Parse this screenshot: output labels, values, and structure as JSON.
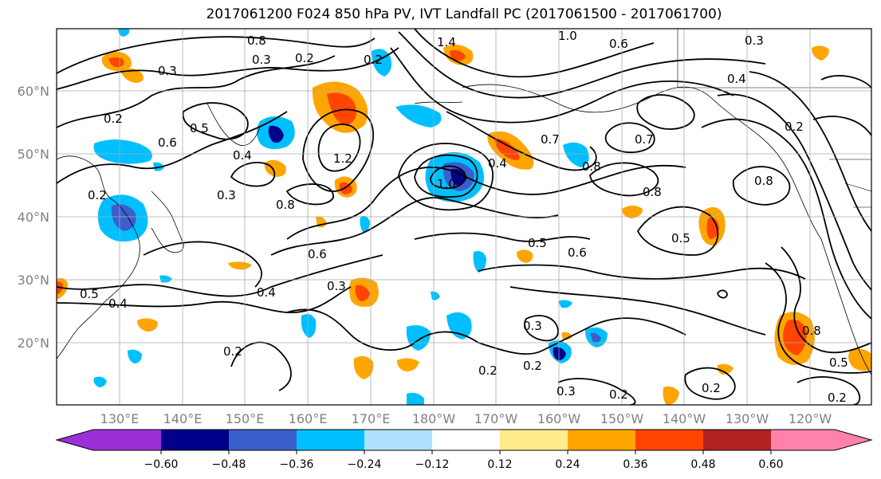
{
  "title": "2017061200 F024 850 hPa PV, IVT Landfall PC (2017061500 - 2017061700)",
  "lat_labels": [
    "60°N",
    "50°N",
    "40°N",
    "30°N",
    "20°N"
  ],
  "lon_labels": [
    "130°E",
    "140°E",
    "150°E",
    "160°E",
    "170°E",
    "180°W",
    "170°W",
    "160°W",
    "150°W",
    "140°W",
    "130°W",
    "120°W"
  ],
  "colorbar": {
    "ticks": [
      "−0.60",
      "−0.48",
      "−0.36",
      "−0.24",
      "−0.12",
      "0.12",
      "0.24",
      "0.36",
      "0.48",
      "0.60"
    ],
    "colors": [
      "#9b30d9",
      "#00008b",
      "#3a5fcd",
      "#00bfff",
      "#b0e2ff",
      "#ffffff",
      "#ffec8b",
      "#ffa500",
      "#ff4500",
      "#b22222",
      "#ff82ab"
    ]
  },
  "contour_labels": [
    "0.8",
    "0.3",
    "0.2",
    "0.2",
    "1.4",
    "1.0",
    "0.6",
    "0.3",
    "0.3",
    "0.4",
    "0.2",
    "0.6",
    "0.5",
    "0.4",
    "0.3",
    "1.2",
    "0.2",
    "0.7",
    "0.7",
    "0.8",
    "0.8",
    "0.2",
    "1.0",
    "0.8",
    "0.4",
    "0.6",
    "0.5",
    "0.6",
    "0.5",
    "0.8",
    "0.4",
    "0.3",
    "0.5",
    "0.4",
    "0.3",
    "0.2",
    "0.2",
    "0.3",
    "0.2",
    "0.2",
    "0.8",
    "0.5",
    "0.2",
    "0.2"
  ],
  "colors": {
    "positive": "#ff4500",
    "positive_light": "#ffa500",
    "negative": "#00bfff",
    "negative_dark": "#3a5fcd"
  }
}
